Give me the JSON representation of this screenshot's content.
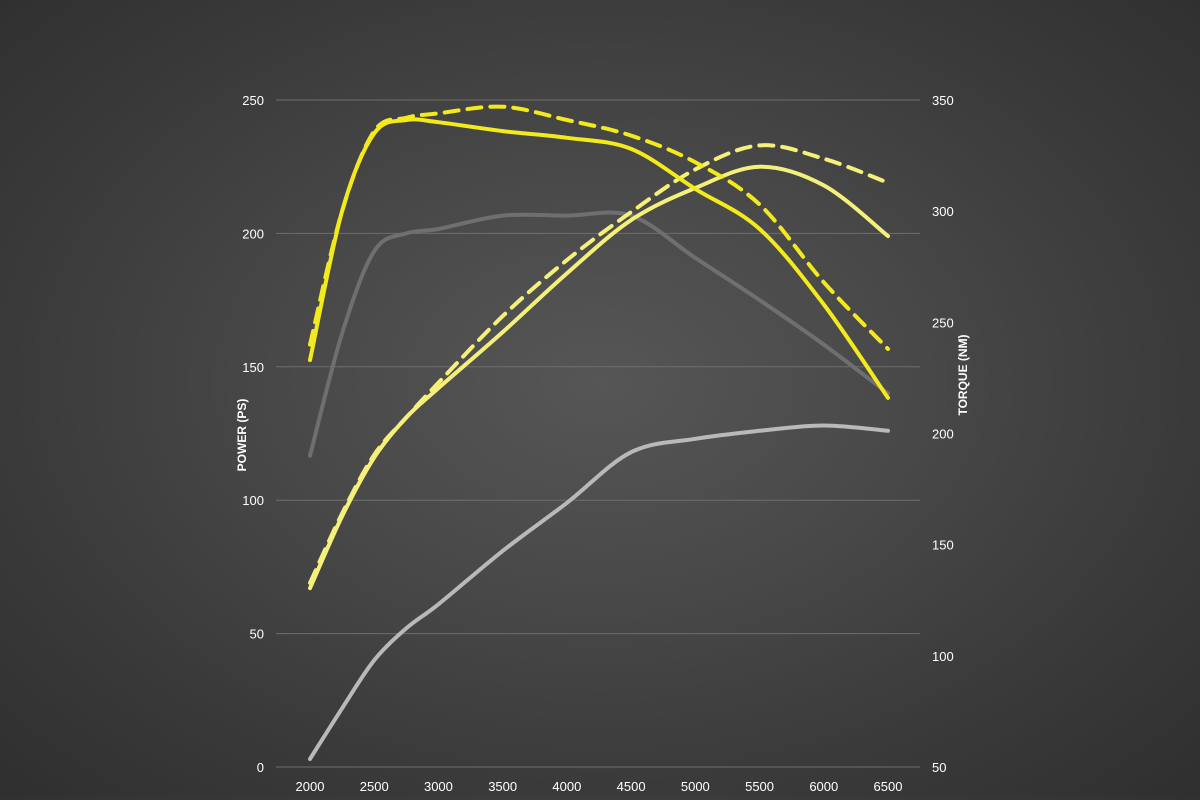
{
  "chart_data": {
    "type": "line",
    "title": "",
    "x": [
      2000,
      2500,
      3000,
      3500,
      4000,
      4500,
      5000,
      5500,
      6000,
      6500
    ],
    "xlabel": "",
    "y_left": {
      "label": "POWER (PS)",
      "lim": [
        0,
        250
      ],
      "ticks": [
        0,
        50,
        100,
        150,
        200,
        250
      ]
    },
    "y_right": {
      "label": "TORQUE (NM)",
      "lim": [
        50,
        350
      ],
      "ticks": [
        50,
        100,
        150,
        200,
        250,
        300,
        350
      ]
    },
    "grid": true,
    "legend": "none",
    "series": [
      {
        "axis": "left",
        "color": "#b9b9b9",
        "dash": "solid",
        "x": [
          2000,
          2250,
          2500,
          2750,
          3000,
          3500,
          4000,
          4500,
          5000,
          5500,
          6000,
          6500
        ],
        "values": [
          3,
          22,
          40,
          52,
          61,
          81,
          99,
          118,
          123,
          126,
          128,
          126
        ]
      },
      {
        "axis": "right",
        "color": "#6f6f6f",
        "dash": "solid",
        "x": [
          2000,
          2250,
          2500,
          2750,
          3000,
          3500,
          4000,
          4500,
          5000,
          5500,
          6000,
          6500
        ],
        "values": [
          190,
          245,
          282,
          290,
          292,
          298,
          298,
          298,
          279,
          260,
          240,
          218
        ]
      },
      {
        "axis": "left",
        "color": "#f5f07a",
        "dash": "solid",
        "x": [
          2000,
          2250,
          2500,
          2750,
          3000,
          3500,
          4000,
          4500,
          5000,
          5500,
          6000,
          6500
        ],
        "values": [
          67,
          94,
          116,
          131,
          142,
          163,
          185,
          205,
          217,
          225,
          218,
          199
        ]
      },
      {
        "axis": "left",
        "color": "#f5f07a",
        "dash": "dashed",
        "x": [
          2000,
          2250,
          2500,
          2750,
          3000,
          3500,
          4000,
          4500,
          5000,
          5500,
          6000,
          6500
        ],
        "values": [
          69,
          95,
          117,
          131,
          144,
          169,
          190,
          208,
          224,
          233,
          228,
          219
        ]
      },
      {
        "axis": "right",
        "color": "#f2ea1c",
        "dash": "solid",
        "x": [
          2000,
          2250,
          2500,
          2750,
          3000,
          3500,
          4000,
          4500,
          5000,
          5500,
          6000,
          6500
        ],
        "values": [
          233,
          300,
          335,
          341,
          340,
          336,
          333,
          328,
          310,
          292,
          258,
          216
        ]
      },
      {
        "axis": "right",
        "color": "#f2ea1c",
        "dash": "dashed",
        "x": [
          2000,
          2250,
          2500,
          2750,
          3000,
          3500,
          4000,
          4500,
          5000,
          5500,
          6000,
          6500
        ],
        "values": [
          240,
          300,
          336,
          342,
          344,
          347,
          341,
          334,
          322,
          303,
          268,
          238
        ]
      }
    ]
  }
}
